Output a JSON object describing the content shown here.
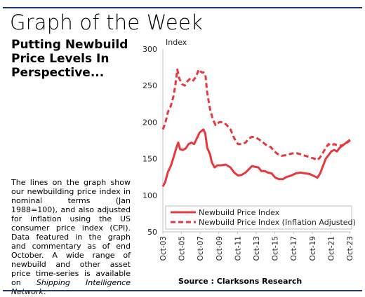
{
  "header": {
    "title": "Graph of the Week",
    "subtitle": "Putting Newbuild Price Levels In Perspective..."
  },
  "description": {
    "text": "The lines on the graph show our newbuilding price index in nominal terms (Jan 1988=100), and also adjusted for inflation using the US consumer price index (CPI). Data featured in the graph and commentary as of end October. A wide range of newbuild and other asset price time-series is available on ",
    "network": "Shipping Intelligence Network",
    "end": "."
  },
  "source": "Source : Clarksons Research",
  "colors": {
    "accent": "#e8383d",
    "rule": "#1f3a6e"
  },
  "chart_data": {
    "type": "line",
    "ylabel": "Index",
    "ylim": [
      50,
      300
    ],
    "yticks": [
      50,
      100,
      150,
      200,
      250,
      300
    ],
    "xlim": [
      2003.75,
      2023.9
    ],
    "xticks": [
      {
        "label": "Oct-03",
        "x": 2003.75
      },
      {
        "label": "Oct-05",
        "x": 2005.75
      },
      {
        "label": "Oct-07",
        "x": 2007.75
      },
      {
        "label": "Oct-09",
        "x": 2009.75
      },
      {
        "label": "Oct-11",
        "x": 2011.75
      },
      {
        "label": "Oct-13",
        "x": 2013.75
      },
      {
        "label": "Oct-15",
        "x": 2015.75
      },
      {
        "label": "Oct-17",
        "x": 2017.75
      },
      {
        "label": "Oct-19",
        "x": 2019.75
      },
      {
        "label": "Oct-21",
        "x": 2021.75
      },
      {
        "label": "Oct-23",
        "x": 2023.75
      }
    ],
    "legend_position": "bottom",
    "series": [
      {
        "name": "Newbuild Price Index",
        "style": "solid",
        "color": "#e8383d",
        "points": [
          [
            2003.75,
            112
          ],
          [
            2004.0,
            118
          ],
          [
            2004.3,
            132
          ],
          [
            2004.6,
            140
          ],
          [
            2004.9,
            152
          ],
          [
            2005.2,
            165
          ],
          [
            2005.4,
            172
          ],
          [
            2005.6,
            163
          ],
          [
            2005.9,
            162
          ],
          [
            2006.2,
            164
          ],
          [
            2006.5,
            170
          ],
          [
            2006.8,
            172
          ],
          [
            2007.1,
            170
          ],
          [
            2007.4,
            178
          ],
          [
            2007.7,
            186
          ],
          [
            2007.9,
            188
          ],
          [
            2008.1,
            190
          ],
          [
            2008.3,
            184
          ],
          [
            2008.5,
            165
          ],
          [
            2008.8,
            156
          ],
          [
            2009.0,
            145
          ],
          [
            2009.3,
            138
          ],
          [
            2009.6,
            141
          ],
          [
            2010.0,
            141
          ],
          [
            2010.5,
            142
          ],
          [
            2011.0,
            138
          ],
          [
            2011.4,
            131
          ],
          [
            2011.8,
            127
          ],
          [
            2012.2,
            128
          ],
          [
            2012.6,
            131
          ],
          [
            2013.0,
            136
          ],
          [
            2013.3,
            140
          ],
          [
            2013.6,
            139
          ],
          [
            2014.0,
            138
          ],
          [
            2014.3,
            133
          ],
          [
            2014.7,
            133
          ],
          [
            2015.0,
            131
          ],
          [
            2015.4,
            130
          ],
          [
            2015.8,
            124
          ],
          [
            2016.2,
            122
          ],
          [
            2016.6,
            122
          ],
          [
            2017.0,
            125
          ],
          [
            2017.5,
            127
          ],
          [
            2018.0,
            130
          ],
          [
            2018.5,
            131
          ],
          [
            2019.0,
            130
          ],
          [
            2019.5,
            129
          ],
          [
            2020.0,
            126
          ],
          [
            2020.3,
            124
          ],
          [
            2020.6,
            130
          ],
          [
            2020.9,
            140
          ],
          [
            2021.2,
            150
          ],
          [
            2021.5,
            155
          ],
          [
            2021.8,
            160
          ],
          [
            2022.1,
            162
          ],
          [
            2022.4,
            160
          ],
          [
            2022.7,
            165
          ],
          [
            2023.0,
            168
          ],
          [
            2023.3,
            171
          ],
          [
            2023.6,
            174
          ],
          [
            2023.8,
            176
          ]
        ]
      },
      {
        "name": "Newbuild Price Index (Inflation Adjusted)",
        "style": "dashed",
        "color": "#e8383d",
        "points": [
          [
            2003.75,
            190
          ],
          [
            2004.0,
            198
          ],
          [
            2004.3,
            214
          ],
          [
            2004.6,
            222
          ],
          [
            2004.9,
            236
          ],
          [
            2005.1,
            252
          ],
          [
            2005.3,
            272
          ],
          [
            2005.5,
            260
          ],
          [
            2005.8,
            252
          ],
          [
            2006.1,
            250
          ],
          [
            2006.4,
            256
          ],
          [
            2006.7,
            260
          ],
          [
            2007.0,
            257
          ],
          [
            2007.3,
            262
          ],
          [
            2007.6,
            272
          ],
          [
            2007.9,
            268
          ],
          [
            2008.1,
            268
          ],
          [
            2008.3,
            266
          ],
          [
            2008.5,
            240
          ],
          [
            2008.8,
            218
          ],
          [
            2009.1,
            204
          ],
          [
            2009.4,
            196
          ],
          [
            2009.8,
            200
          ],
          [
            2010.2,
            200
          ],
          [
            2010.6,
            196
          ],
          [
            2011.0,
            190
          ],
          [
            2011.4,
            178
          ],
          [
            2011.8,
            170
          ],
          [
            2012.2,
            170
          ],
          [
            2012.6,
            172
          ],
          [
            2013.0,
            178
          ],
          [
            2013.3,
            180
          ],
          [
            2013.7,
            179
          ],
          [
            2014.1,
            176
          ],
          [
            2014.5,
            172
          ],
          [
            2014.9,
            168
          ],
          [
            2015.3,
            166
          ],
          [
            2015.7,
            160
          ],
          [
            2016.1,
            156
          ],
          [
            2016.5,
            154
          ],
          [
            2017.0,
            155
          ],
          [
            2017.5,
            157
          ],
          [
            2018.0,
            158
          ],
          [
            2018.5,
            156
          ],
          [
            2019.0,
            154
          ],
          [
            2019.5,
            152
          ],
          [
            2020.0,
            150
          ],
          [
            2020.3,
            148
          ],
          [
            2020.6,
            152
          ],
          [
            2020.9,
            158
          ],
          [
            2021.2,
            165
          ],
          [
            2021.5,
            170
          ],
          [
            2021.8,
            168
          ],
          [
            2022.1,
            170
          ],
          [
            2022.5,
            168
          ],
          [
            2022.9,
            168
          ],
          [
            2023.2,
            170
          ],
          [
            2023.5,
            172
          ],
          [
            2023.8,
            175
          ]
        ]
      }
    ]
  }
}
